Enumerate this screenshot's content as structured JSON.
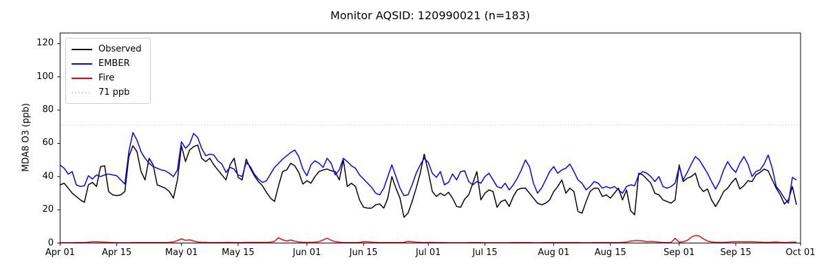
{
  "chart_data": {
    "type": "line",
    "title": "Monitor AQSID: 120990021 (n=183)",
    "xlabel": "",
    "ylabel": "MDA8 O3 (ppb)",
    "n_points": 183,
    "x_unit": "day index from Apr 01",
    "xlim": [
      0,
      183
    ],
    "ylim": [
      0,
      126.4
    ],
    "yticks": [
      0,
      20,
      40,
      60,
      80,
      100,
      120
    ],
    "xticks": {
      "day_index": [
        0,
        14,
        30,
        44,
        61,
        75,
        91,
        105,
        122,
        136,
        153,
        167,
        183
      ],
      "labels": [
        "Apr 01",
        "Apr 15",
        "May 01",
        "May 15",
        "Jun 01",
        "Jun 15",
        "Jul 01",
        "Jul 15",
        "Aug 01",
        "Aug 15",
        "Sep 01",
        "Sep 15",
        "Oct 01"
      ]
    },
    "grid": false,
    "threshold": {
      "value": 71,
      "label": "71 ppb",
      "color": "#d3d3d3",
      "linestyle": "dotted"
    },
    "legend": {
      "position": "upper left",
      "entries": [
        {
          "label": "Observed",
          "color": "#000000",
          "linestyle": "solid"
        },
        {
          "label": "EMBER",
          "color": "#0000ff",
          "linestyle": "solid"
        },
        {
          "label": "Fire",
          "color": "#ff0000",
          "linestyle": "solid"
        },
        {
          "label": "71 ppb",
          "color": "#d3d3d3",
          "linestyle": "dotted"
        }
      ]
    },
    "series": [
      {
        "name": "Observed",
        "color": "#000000",
        "values": [
          35,
          36,
          33,
          30,
          28,
          26,
          24.5,
          35,
          36.5,
          34,
          46,
          46.5,
          31,
          29,
          28.5,
          29,
          31,
          52,
          58.5,
          55,
          43,
          38,
          51,
          47,
          35,
          34,
          33,
          31,
          27,
          38,
          58.5,
          49,
          56,
          58,
          59,
          51,
          49,
          51,
          47,
          44,
          41,
          38,
          47,
          51,
          39.5,
          38,
          50.5,
          45,
          40.5,
          37,
          34.5,
          30.5,
          27,
          25,
          34.5,
          43,
          44,
          48,
          46.5,
          42.5,
          35.5,
          37.5,
          36,
          40,
          43,
          44,
          44.5,
          43.5,
          43,
          38,
          50,
          34,
          36,
          34,
          26,
          21.5,
          21,
          21,
          23,
          23.5,
          21,
          27,
          40,
          33,
          27,
          15.5,
          18,
          25,
          33,
          42,
          53.5,
          43,
          31,
          28,
          30,
          28.5,
          30.5,
          27,
          22,
          21.5,
          26.5,
          29,
          36,
          43,
          26,
          30,
          32,
          31,
          21.5,
          25,
          26,
          22,
          28,
          32,
          33,
          33,
          30,
          27,
          24,
          23,
          24,
          26,
          31,
          34,
          38,
          30,
          33,
          31,
          19,
          18,
          25,
          31,
          33,
          33,
          28,
          29,
          27,
          30,
          33,
          26,
          32,
          19.5,
          17,
          42,
          41,
          38.5,
          36,
          30,
          29,
          26,
          25,
          24,
          26,
          47,
          37,
          39,
          40,
          42,
          34,
          31,
          32.5,
          26,
          22,
          26,
          31,
          33,
          36.5,
          39,
          32.5,
          34.5,
          37.5,
          37,
          41,
          42.5,
          44.5,
          43.5,
          38,
          33,
          29,
          23.5,
          26,
          34,
          23
        ]
      },
      {
        "name": "EMBER",
        "color": "#0000ff",
        "values": [
          47,
          45,
          41.5,
          43,
          35,
          34,
          34.5,
          40.5,
          38.5,
          41,
          40,
          41,
          41.5,
          41,
          40.5,
          38,
          35.5,
          55,
          66.5,
          62,
          55,
          51,
          48,
          46,
          45,
          44,
          43.5,
          42,
          40,
          44,
          61,
          57,
          59.5,
          66,
          63.5,
          57,
          52.5,
          53.5,
          53,
          49.5,
          47.5,
          42.5,
          45.5,
          44.5,
          41,
          40,
          48.5,
          46,
          41.5,
          38.5,
          36.5,
          37.5,
          41.5,
          45.5,
          48,
          50.5,
          52.5,
          54.5,
          56,
          52,
          44.5,
          40.5,
          47,
          49.5,
          48,
          45.5,
          51,
          48,
          41,
          44,
          51,
          49,
          46.5,
          45,
          41,
          38.5,
          36,
          33.5,
          30,
          29,
          33,
          40,
          47,
          40,
          33,
          28.5,
          29,
          35,
          42,
          47,
          51,
          48.5,
          42,
          39.5,
          43,
          35,
          36.5,
          41.5,
          38,
          43,
          43.5,
          37,
          35,
          37,
          36,
          40,
          42,
          38,
          34,
          33,
          36,
          32,
          35,
          39,
          44,
          50,
          46,
          36,
          30,
          33,
          38,
          43,
          46,
          42,
          44,
          45,
          47.5,
          43,
          38,
          36,
          32,
          34,
          37,
          36,
          33,
          34,
          33,
          34,
          32,
          30,
          34,
          35,
          34.5,
          41,
          43,
          42,
          40,
          37,
          40,
          34,
          33,
          34,
          36,
          46,
          38,
          42.5,
          47.5,
          52,
          50,
          46,
          42,
          37,
          32.5,
          37,
          44,
          49,
          45,
          42.5,
          48,
          52,
          47.5,
          40,
          43,
          44,
          47.5,
          53,
          45,
          34,
          31,
          27,
          24,
          39.5,
          38
        ]
      },
      {
        "name": "Fire",
        "color": "#ff0000",
        "values": [
          0.2,
          0.2,
          0.2,
          0.2,
          0.3,
          0.3,
          0.3,
          0.5,
          0.7,
          0.7,
          0.6,
          0.5,
          0.4,
          0.3,
          0.2,
          0.2,
          0.2,
          0.2,
          0.3,
          0.3,
          0.3,
          0.3,
          0.3,
          0.3,
          0.3,
          0.3,
          0.3,
          0.4,
          0.6,
          1.5,
          2.5,
          1.6,
          1.9,
          1.2,
          0.6,
          0.4,
          0.4,
          0.3,
          0.3,
          0.3,
          0.3,
          0.4,
          0.4,
          0.3,
          0.3,
          0.3,
          0.4,
          0.4,
          0.4,
          0.4,
          0.4,
          0.4,
          0.5,
          1.0,
          3.2,
          1.9,
          1.2,
          1.8,
          1.1,
          0.6,
          0.4,
          0.4,
          0.4,
          0.5,
          0.8,
          1.8,
          2.9,
          1.6,
          0.8,
          0.5,
          0.3,
          0.3,
          0.3,
          0.3,
          0.4,
          0.8,
          0.7,
          0.5,
          0.4,
          0.3,
          0.3,
          0.3,
          0.3,
          0.3,
          0.3,
          0.4,
          1.0,
          0.8,
          0.5,
          0.4,
          0.3,
          0.4,
          0.4,
          0.3,
          0.3,
          0.3,
          0.2,
          0.2,
          0.2,
          0.2,
          0.2,
          0.3,
          0.3,
          0.3,
          0.3,
          0.2,
          0.2,
          0.2,
          0.2,
          0.2,
          0.2,
          0.2,
          0.3,
          0.3,
          0.3,
          0.3,
          0.3,
          0.2,
          0.2,
          0.2,
          0.3,
          0.3,
          0.3,
          0.3,
          0.3,
          0.3,
          0.3,
          0.3,
          0.3,
          0.2,
          0.2,
          0.2,
          0.3,
          0.3,
          0.3,
          0.3,
          0.3,
          0.3,
          0.3,
          0.4,
          0.5,
          1.2,
          1.4,
          1.4,
          1.3,
          0.8,
          0.9,
          0.8,
          0.5,
          0.3,
          0.3,
          0.3,
          2.8,
          0.5,
          0.8,
          1.5,
          3.5,
          4.6,
          4.2,
          2.5,
          1.2,
          0.6,
          0.4,
          0.4,
          0.4,
          0.5,
          0.7,
          0.8,
          0.8,
          0.7,
          0.7,
          0.8,
          0.6,
          0.5,
          0.4,
          0.4,
          0.5,
          0.6,
          0.4,
          0.3,
          0.4,
          0.5,
          0.6
        ]
      }
    ]
  }
}
